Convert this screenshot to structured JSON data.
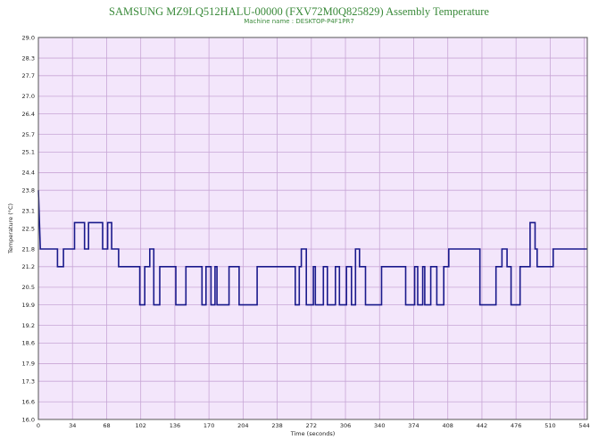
{
  "chart_data": {
    "type": "line",
    "title": "SAMSUNG MZ9LQ512HALU-00000 (FXV72M0Q825829) Assembly Temperature",
    "subtitle": "Machine name : DESKTOP-P4F1PR7",
    "xlabel": "Time (seconds)",
    "ylabel": "Temperature (°C)",
    "xlim": [
      0,
      547
    ],
    "ylim": [
      16.0,
      29.0
    ],
    "xticks": [
      "0",
      "34",
      "68",
      "102",
      "136",
      "170",
      "204",
      "238",
      "272",
      "306",
      "340",
      "374",
      "408",
      "442",
      "476",
      "510",
      "544"
    ],
    "yticks": [
      "29.0",
      "28.3",
      "27.7",
      "27.0",
      "26.4",
      "25.7",
      "25.1",
      "24.4",
      "23.8",
      "23.1",
      "22.5",
      "21.8",
      "21.2",
      "20.5",
      "19.9",
      "19.2",
      "18.6",
      "17.9",
      "17.3",
      "16.6",
      "16.0"
    ],
    "grid": true,
    "colors": {
      "line": "#1a1a8c",
      "plot_bg": "#f3e6fb",
      "grid": "#c8a6d6",
      "title": "#3a8a3a"
    },
    "series": [
      {
        "step": true,
        "points": [
          [
            0,
            23.8
          ],
          [
            2,
            21.8
          ],
          [
            19,
            21.8
          ],
          [
            19,
            21.2
          ],
          [
            25,
            21.2
          ],
          [
            25,
            21.8
          ],
          [
            36,
            21.8
          ],
          [
            36,
            22.7
          ],
          [
            46,
            22.7
          ],
          [
            46,
            21.8
          ],
          [
            50,
            21.8
          ],
          [
            50,
            22.7
          ],
          [
            64,
            22.7
          ],
          [
            64,
            21.8
          ],
          [
            69,
            21.8
          ],
          [
            69,
            22.7
          ],
          [
            73,
            22.7
          ],
          [
            73,
            21.8
          ],
          [
            80,
            21.8
          ],
          [
            80,
            21.2
          ],
          [
            101,
            21.2
          ],
          [
            101,
            19.9
          ],
          [
            106,
            19.9
          ],
          [
            106,
            21.2
          ],
          [
            111,
            21.2
          ],
          [
            111,
            21.8
          ],
          [
            115,
            21.8
          ],
          [
            115,
            19.9
          ],
          [
            121,
            19.9
          ],
          [
            121,
            21.2
          ],
          [
            137,
            21.2
          ],
          [
            137,
            19.9
          ],
          [
            147,
            19.9
          ],
          [
            147,
            21.2
          ],
          [
            163,
            21.2
          ],
          [
            163,
            19.9
          ],
          [
            167,
            19.9
          ],
          [
            167,
            21.2
          ],
          [
            172,
            21.2
          ],
          [
            172,
            19.9
          ],
          [
            176,
            19.9
          ],
          [
            176,
            21.2
          ],
          [
            178,
            21.2
          ],
          [
            178,
            19.9
          ],
          [
            190,
            19.9
          ],
          [
            190,
            21.2
          ],
          [
            200,
            21.2
          ],
          [
            200,
            19.9
          ],
          [
            218,
            19.9
          ],
          [
            218,
            21.2
          ],
          [
            256,
            21.2
          ],
          [
            256,
            19.9
          ],
          [
            260,
            19.9
          ],
          [
            260,
            21.2
          ],
          [
            262,
            21.2
          ],
          [
            262,
            21.8
          ],
          [
            267,
            21.8
          ],
          [
            267,
            19.9
          ],
          [
            274,
            19.9
          ],
          [
            274,
            21.2
          ],
          [
            276,
            21.2
          ],
          [
            276,
            19.9
          ],
          [
            284,
            19.9
          ],
          [
            284,
            21.2
          ],
          [
            288,
            21.2
          ],
          [
            288,
            19.9
          ],
          [
            296,
            19.9
          ],
          [
            296,
            21.2
          ],
          [
            300,
            21.2
          ],
          [
            300,
            19.9
          ],
          [
            307,
            19.9
          ],
          [
            307,
            21.2
          ],
          [
            312,
            21.2
          ],
          [
            312,
            19.9
          ],
          [
            316,
            19.9
          ],
          [
            316,
            21.8
          ],
          [
            320,
            21.8
          ],
          [
            320,
            21.2
          ],
          [
            326,
            21.2
          ],
          [
            326,
            19.9
          ],
          [
            342,
            19.9
          ],
          [
            342,
            21.2
          ],
          [
            366,
            21.2
          ],
          [
            366,
            19.9
          ],
          [
            375,
            19.9
          ],
          [
            375,
            21.2
          ],
          [
            378,
            21.2
          ],
          [
            378,
            19.9
          ],
          [
            383,
            19.9
          ],
          [
            383,
            21.2
          ],
          [
            385,
            21.2
          ],
          [
            385,
            19.9
          ],
          [
            391,
            19.9
          ],
          [
            391,
            21.2
          ],
          [
            397,
            21.2
          ],
          [
            397,
            19.9
          ],
          [
            404,
            19.9
          ],
          [
            404,
            21.2
          ],
          [
            409,
            21.2
          ],
          [
            409,
            21.8
          ],
          [
            440,
            21.8
          ],
          [
            440,
            19.9
          ],
          [
            456,
            19.9
          ],
          [
            456,
            21.2
          ],
          [
            462,
            21.2
          ],
          [
            462,
            21.8
          ],
          [
            467,
            21.8
          ],
          [
            467,
            21.2
          ],
          [
            471,
            21.2
          ],
          [
            471,
            19.9
          ],
          [
            480,
            19.9
          ],
          [
            480,
            21.2
          ],
          [
            490,
            21.2
          ],
          [
            490,
            22.7
          ],
          [
            495,
            22.7
          ],
          [
            495,
            21.8
          ],
          [
            497,
            21.8
          ],
          [
            497,
            21.2
          ],
          [
            513,
            21.2
          ],
          [
            513,
            21.8
          ],
          [
            547,
            21.8
          ]
        ]
      }
    ]
  }
}
